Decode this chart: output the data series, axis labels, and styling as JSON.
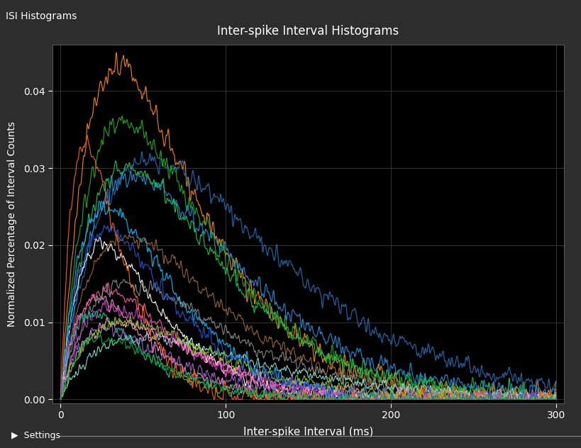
{
  "title": "Inter-spike Interval Histograms",
  "window_title": "ISI Histograms",
  "xlabel": "Inter-spike Interval (ms)",
  "ylabel": "Normalized Percentage of Interval Counts",
  "xlim": [
    -5,
    305
  ],
  "ylim": [
    -0.0005,
    0.046
  ],
  "yticks": [
    0,
    0.01,
    0.02,
    0.03,
    0.04
  ],
  "xticks": [
    0,
    100,
    200,
    300
  ],
  "background_color": "#000000",
  "panel_color": "#2d2d2d",
  "grid_color": "#3a3a3a",
  "text_color": "#ffffff",
  "title_color": "#ffffff",
  "line_width": 0.85,
  "curves": [
    {
      "color": "#ff8800",
      "peak_x": 22,
      "peak_y": 0.043,
      "tau": 35,
      "noise_amp": 0.0025,
      "noise_freq": 0.8
    },
    {
      "color": "#1e6eb5",
      "peak_x": 45,
      "peak_y": 0.031,
      "tau": 55,
      "noise_amp": 0.002,
      "noise_freq": 0.8
    },
    {
      "color": "#22aa22",
      "peak_x": 20,
      "peak_y": 0.036,
      "tau": 38,
      "noise_amp": 0.0022,
      "noise_freq": 0.8
    },
    {
      "color": "#1a90e0",
      "peak_x": 32,
      "peak_y": 0.029,
      "tau": 45,
      "noise_amp": 0.002,
      "noise_freq": 0.8
    },
    {
      "color": "#11cc55",
      "peak_x": 25,
      "peak_y": 0.03,
      "tau": 40,
      "noise_amp": 0.002,
      "noise_freq": 0.8
    },
    {
      "color": "#00bfff",
      "peak_x": 12,
      "peak_y": 0.025,
      "tau": 28,
      "noise_amp": 0.0018,
      "noise_freq": 0.8
    },
    {
      "color": "#ffffff",
      "peak_x": 10,
      "peak_y": 0.02,
      "tau": 25,
      "noise_amp": 0.0015,
      "noise_freq": 0.8
    },
    {
      "color": "#996633",
      "peak_x": 28,
      "peak_y": 0.021,
      "tau": 40,
      "noise_amp": 0.0016,
      "noise_freq": 0.8
    },
    {
      "color": "#ff88cc",
      "peak_x": 8,
      "peak_y": 0.013,
      "tau": 22,
      "noise_amp": 0.0014,
      "noise_freq": 0.9
    },
    {
      "color": "#ff55aa",
      "peak_x": 15,
      "peak_y": 0.014,
      "tau": 28,
      "noise_amp": 0.0014,
      "noise_freq": 0.9
    },
    {
      "color": "#888888",
      "peak_x": 30,
      "peak_y": 0.015,
      "tau": 42,
      "noise_amp": 0.0015,
      "noise_freq": 0.8
    },
    {
      "color": "#cc44cc",
      "peak_x": 18,
      "peak_y": 0.012,
      "tau": 30,
      "noise_amp": 0.0018,
      "noise_freq": 0.9
    },
    {
      "color": "#00cc88",
      "peak_x": 6,
      "peak_y": 0.011,
      "tau": 20,
      "noise_amp": 0.0013,
      "noise_freq": 0.9
    },
    {
      "color": "#88ddcc",
      "peak_x": 35,
      "peak_y": 0.008,
      "tau": 50,
      "noise_amp": 0.0012,
      "noise_freq": 0.7
    },
    {
      "color": "#ff99cc",
      "peak_x": 20,
      "peak_y": 0.01,
      "tau": 35,
      "noise_amp": 0.0015,
      "noise_freq": 0.9
    },
    {
      "color": "#9966cc",
      "peak_x": 14,
      "peak_y": 0.009,
      "tau": 28,
      "noise_amp": 0.0018,
      "noise_freq": 0.9
    },
    {
      "color": "#88cc00",
      "peak_x": 25,
      "peak_y": 0.01,
      "tau": 38,
      "noise_amp": 0.0014,
      "noise_freq": 0.8
    },
    {
      "color": "#ff6600",
      "peak_x": 3,
      "peak_y": 0.033,
      "tau": 15,
      "noise_amp": 0.002,
      "noise_freq": 0.9
    },
    {
      "color": "#2255cc",
      "peak_x": 10,
      "peak_y": 0.022,
      "tau": 28,
      "noise_amp": 0.0018,
      "noise_freq": 0.8
    },
    {
      "color": "#00aa44",
      "peak_x": 12,
      "peak_y": 0.008,
      "tau": 25,
      "noise_amp": 0.0012,
      "noise_freq": 0.8
    }
  ],
  "seed": 77
}
